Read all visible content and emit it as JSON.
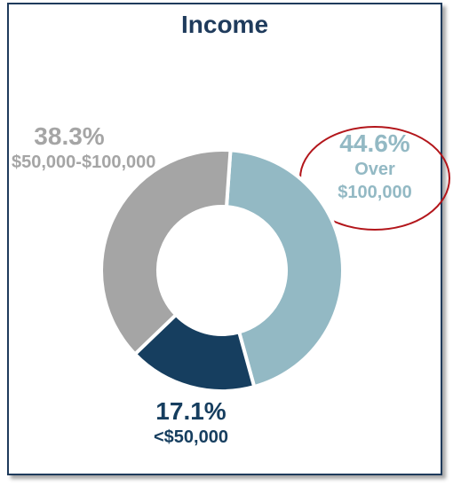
{
  "chart_data": {
    "type": "pie",
    "title": "Income",
    "categories": [
      "Over $100,000",
      "<$50,000",
      "$50,000-$100,000"
    ],
    "values": [
      44.6,
      17.1,
      38.3
    ],
    "value_labels": [
      "44.6%",
      "17.1%",
      "38.3%"
    ],
    "colors": [
      "#93b9c4",
      "#163e5f",
      "#a5a5a5"
    ]
  }
}
